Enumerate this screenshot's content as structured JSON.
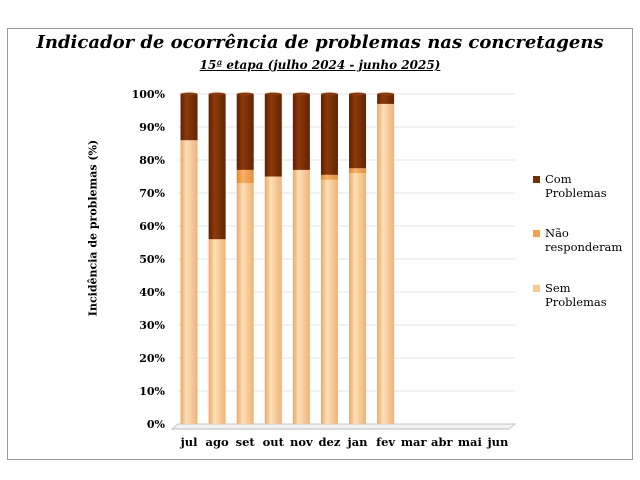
{
  "chart_data": {
    "type": "bar",
    "stacked": true,
    "percent": true,
    "title": "Indicador de ocorrência de problemas nas concretagens",
    "subtitle": "15ª etapa (julho 2024 - junho 2025)",
    "xlabel": "",
    "ylabel": "Incidência de problemas (%)",
    "ylim": [
      0,
      100
    ],
    "yticks": [
      "0%",
      "10%",
      "20%",
      "30%",
      "40%",
      "50%",
      "60%",
      "70%",
      "80%",
      "90%",
      "100%"
    ],
    "categories": [
      "jul",
      "ago",
      "set",
      "out",
      "nov",
      "dez",
      "jan",
      "fev",
      "mar",
      "abr",
      "mai",
      "jun"
    ],
    "series": [
      {
        "name": "Sem Problemas",
        "color": "#f9c98f",
        "values": [
          86,
          56,
          73,
          75,
          77,
          74,
          76,
          97,
          null,
          null,
          null,
          null
        ]
      },
      {
        "name": "Não responderam",
        "color": "#f4a04c",
        "values": [
          0,
          0,
          4,
          0,
          0,
          1.5,
          1.5,
          0,
          null,
          null,
          null,
          null
        ]
      },
      {
        "name": "Com Problemas",
        "color": "#7a2e05",
        "values": [
          14,
          44,
          23,
          25,
          23,
          24.5,
          22.5,
          3,
          null,
          null,
          null,
          null
        ]
      }
    ],
    "legend": {
      "position": "right",
      "order": [
        "Com Problemas",
        "Não responderam",
        "Sem Problemas"
      ],
      "labels": [
        "Com Problemas",
        "Não responderam",
        "Sem Problemas"
      ]
    },
    "grid": true
  }
}
